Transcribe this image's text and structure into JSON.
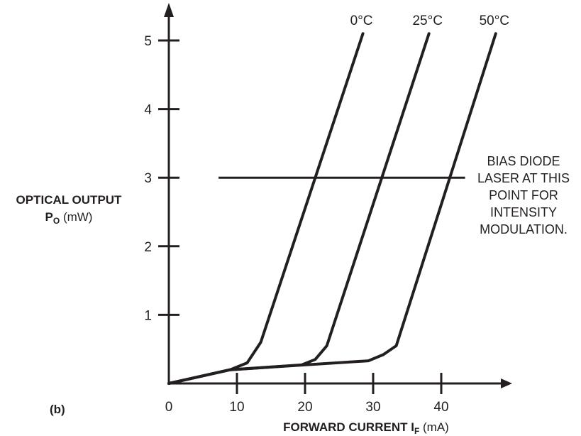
{
  "panel_label": "(b)",
  "ylabel": {
    "line1": "OPTICAL OUTPUT",
    "symbol": "P",
    "subscript": "O",
    "unit": "(mW)"
  },
  "xlabel": {
    "text": "FORWARD CURRENT I",
    "subscript": "F",
    "unit": "(mA)"
  },
  "annotation": {
    "lines": [
      "BIAS DIODE",
      "LASER AT THIS",
      "POINT FOR",
      "INTENSITY",
      "MODULATION."
    ]
  },
  "colors": {
    "ink": "#231f20"
  },
  "chart_data": {
    "type": "line",
    "xlim": [
      0,
      50
    ],
    "ylim": [
      0,
      5.5
    ],
    "x_ticks": [
      0,
      10,
      20,
      30,
      40
    ],
    "y_ticks": [
      1,
      2,
      3,
      4,
      5
    ],
    "series": [
      {
        "name": "0°C",
        "points": [
          [
            0,
            0
          ],
          [
            9,
            0.2
          ],
          [
            11.5,
            0.3
          ],
          [
            13.5,
            0.6
          ],
          [
            28.5,
            5.1
          ]
        ]
      },
      {
        "name": "25°C",
        "points": [
          [
            0,
            0
          ],
          [
            9,
            0.2
          ],
          [
            19.5,
            0.27
          ],
          [
            21.5,
            0.35
          ],
          [
            23.2,
            0.55
          ],
          [
            38.2,
            5.1
          ]
        ]
      },
      {
        "name": "50°C",
        "points": [
          [
            0,
            0
          ],
          [
            9,
            0.2
          ],
          [
            29.3,
            0.33
          ],
          [
            31.5,
            0.42
          ],
          [
            33.4,
            0.55
          ],
          [
            48.0,
            5.1
          ]
        ]
      }
    ],
    "bias_line": {
      "y": 3,
      "x": [
        7.3,
        43.5
      ]
    }
  }
}
